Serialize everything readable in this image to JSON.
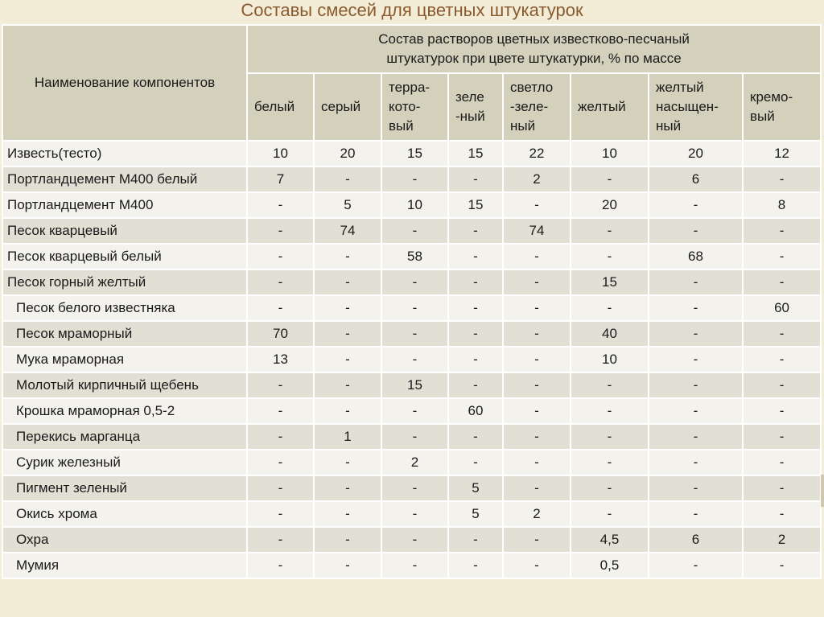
{
  "title": "Составы смесей для цветных штукатурок",
  "header": {
    "name_col": "Наименование компонентов",
    "group_line1": "Состав растворов цветных известково-песчаный",
    "group_line2": "штукатурок при цвете штукатурки, % по массе",
    "columns": [
      {
        "l1": "белый"
      },
      {
        "l1": "серый"
      },
      {
        "l1": "терра-",
        "l2": "кото-",
        "l3": "вый"
      },
      {
        "l1": "зеле",
        "l2": "-ный"
      },
      {
        "l1": "светло",
        "l2": "-зеле-",
        "l3": "ный"
      },
      {
        "l1": "желтый"
      },
      {
        "l1": "желтый",
        "l2": "насыщен-",
        "l3": "ный"
      },
      {
        "l1": "кремо-",
        "l2": "вый"
      }
    ]
  },
  "rows": [
    {
      "name": "Известь(тесто)",
      "v": [
        "10",
        "20",
        "15",
        "15",
        "22",
        "10",
        "20",
        "12"
      ]
    },
    {
      "name": "Портландцемент М400 белый",
      "v": [
        "7",
        "-",
        "-",
        "-",
        "2",
        "-",
        "6",
        "-"
      ]
    },
    {
      "name": "Портландцемент М400",
      "v": [
        "-",
        "5",
        "10",
        "15",
        "-",
        "20",
        "-",
        "8"
      ]
    },
    {
      "name": "Песок кварцевый",
      "v": [
        "-",
        "74",
        "-",
        "-",
        "74",
        "-",
        "-",
        "-"
      ]
    },
    {
      "name": "Песок кварцевый белый",
      "v": [
        "-",
        "-",
        "58",
        "-",
        "-",
        "-",
        "68",
        "-"
      ]
    },
    {
      "name": "Песок горный желтый",
      "v": [
        "-",
        "-",
        "-",
        "-",
        "-",
        "15",
        "-",
        "-"
      ]
    },
    {
      "name": "Песок белого известняка",
      "v": [
        "-",
        "-",
        "-",
        "-",
        "-",
        "-",
        "-",
        "60"
      ]
    },
    {
      "name": "Песок мраморный",
      "v": [
        "70",
        "-",
        "-",
        "-",
        "-",
        "40",
        "-",
        "-"
      ]
    },
    {
      "name": "Мука мраморная",
      "v": [
        "13",
        "-",
        "-",
        "-",
        "-",
        "10",
        "-",
        "-"
      ]
    },
    {
      "name": "Молотый кирпичный щебень",
      "v": [
        "-",
        "-",
        "15",
        "-",
        "-",
        "-",
        "-",
        "-"
      ]
    },
    {
      "name": "Крошка мраморная 0,5-2",
      "v": [
        "-",
        "-",
        "-",
        "60",
        "-",
        "-",
        "-",
        "-"
      ]
    },
    {
      "name": "Перекись марганца",
      "v": [
        "-",
        "1",
        "-",
        "-",
        "-",
        "-",
        "-",
        "-"
      ]
    },
    {
      "name": "Сурик железный",
      "v": [
        "-",
        "-",
        "2",
        "-",
        "-",
        "-",
        "-",
        "-"
      ]
    },
    {
      "name": "Пигмент зеленый",
      "v": [
        "-",
        "-",
        "-",
        "5",
        "-",
        "-",
        "-",
        "-"
      ]
    },
    {
      "name": "Окись хрома",
      "v": [
        "-",
        "-",
        "-",
        "5",
        "2",
        "-",
        "-",
        "-"
      ]
    },
    {
      "name": "Охра",
      "v": [
        "-",
        "-",
        "-",
        "-",
        "-",
        "4,5",
        "6",
        "2"
      ]
    },
    {
      "name": "Мумия",
      "v": [
        "-",
        "-",
        "-",
        "-",
        "-",
        "0,5",
        "-",
        "-"
      ]
    }
  ],
  "colors": {
    "title": "#8a5a2e",
    "header_bg": "#d3d0bb",
    "row_light": "#f4f2ec",
    "row_dark": "#e2e0d5"
  }
}
